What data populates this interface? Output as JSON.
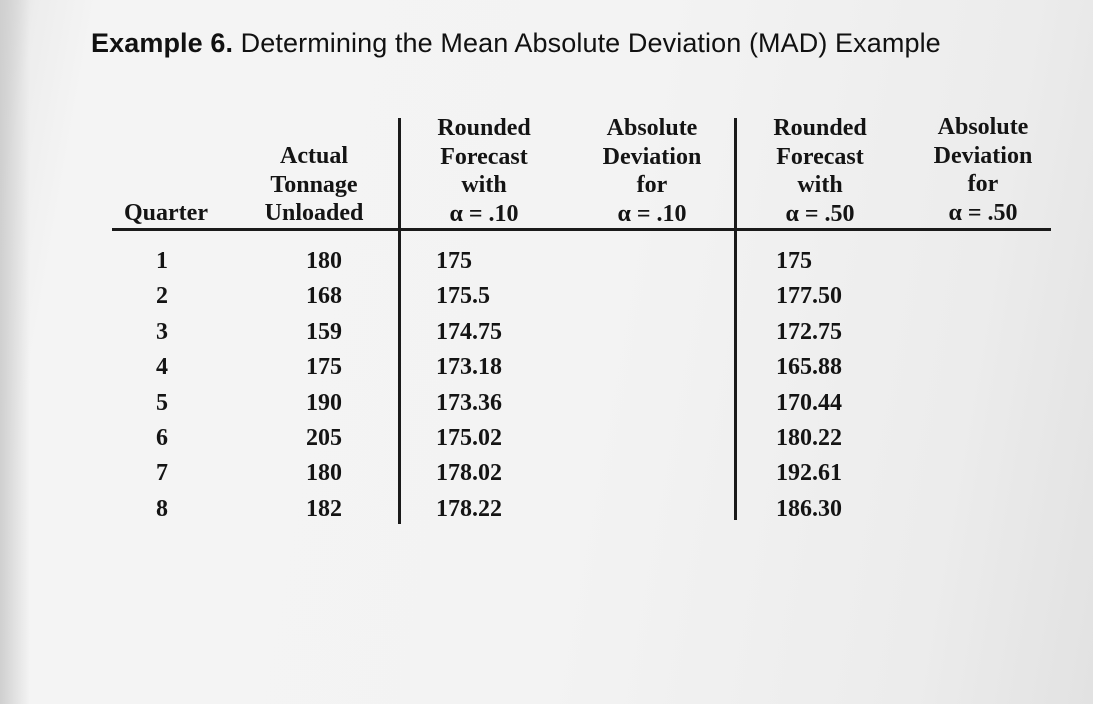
{
  "title": {
    "lead": "Example 6.",
    "rest": " Determining the Mean Absolute Deviation (MAD) Example"
  },
  "table": {
    "headers": {
      "quarter": [
        "Quarter"
      ],
      "actual": [
        "Actual",
        "Tonnage",
        "Unloaded"
      ],
      "forecast_10": [
        "Rounded",
        "Forecast",
        "with",
        "α = .10"
      ],
      "deviation_10": [
        "Absolute",
        "Deviation",
        "for",
        "α = .10"
      ],
      "forecast_50": [
        "Rounded",
        "Forecast",
        "with",
        "α = .50"
      ],
      "deviation_50": [
        "Absolute",
        "Deviation",
        "for",
        "α = .50"
      ]
    },
    "columns": {
      "quarter": [
        "1",
        "2",
        "3",
        "4",
        "5",
        "6",
        "7",
        "8"
      ],
      "actual": [
        "180",
        "168",
        "159",
        "175",
        "190",
        "205",
        "180",
        "182"
      ],
      "forecast_10": [
        "175",
        "175.5",
        "174.75",
        "173.18",
        "173.36",
        "175.02",
        "178.02",
        "178.22"
      ],
      "forecast_50": [
        "175",
        "177.50",
        "172.75",
        "165.88",
        "170.44",
        "180.22",
        "192.61",
        "186.30"
      ]
    }
  }
}
